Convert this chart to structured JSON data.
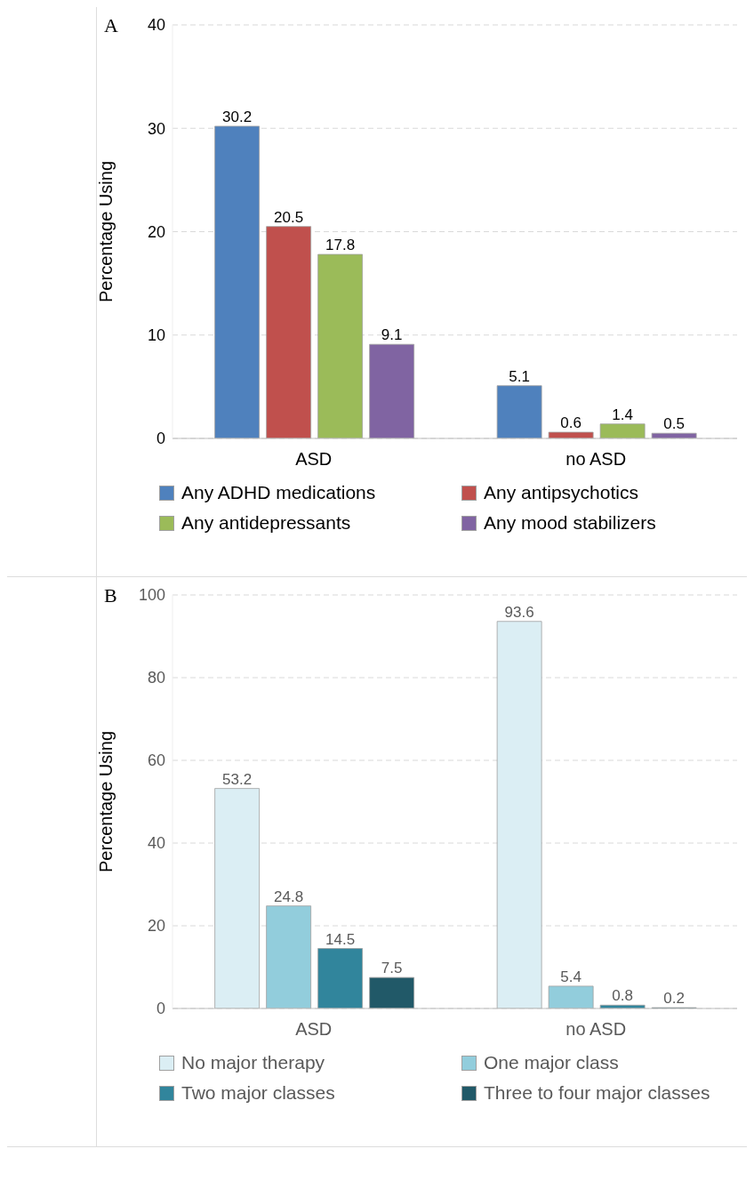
{
  "chart_data": [
    {
      "type": "bar",
      "title": "A",
      "ylabel": "Percentage Using",
      "categories": [
        "ASD",
        "no ASD"
      ],
      "ylim": [
        0,
        40
      ],
      "yticks": [
        0,
        10,
        20,
        30,
        40
      ],
      "grid": "y",
      "legend": "bottom",
      "data_labels": true,
      "series": [
        {
          "name": "Any ADHD medications",
          "color": "#4f81bd",
          "values": [
            30.2,
            5.1
          ]
        },
        {
          "name": "Any antipsychotics",
          "color": "#c0504d",
          "values": [
            20.5,
            0.6
          ]
        },
        {
          "name": "Any antidepressants",
          "color": "#9bbb59",
          "values": [
            17.8,
            1.4
          ]
        },
        {
          "name": "Any mood stabilizers",
          "color": "#8064a2",
          "values": [
            9.1,
            0.5
          ]
        }
      ]
    },
    {
      "type": "bar",
      "title": "B",
      "ylabel": "Percentage Using",
      "categories": [
        "ASD",
        "no ASD"
      ],
      "ylim": [
        0,
        100
      ],
      "yticks": [
        0,
        20,
        40,
        60,
        80,
        100
      ],
      "grid": "y",
      "legend": "bottom",
      "data_labels": true,
      "series": [
        {
          "name": "No major therapy",
          "color": "#dbeef4",
          "values": [
            53.2,
            93.6
          ]
        },
        {
          "name": "One major class",
          "color": "#92cddc",
          "values": [
            24.8,
            5.4
          ]
        },
        {
          "name": "Two major classes",
          "color": "#31859c",
          "values": [
            14.5,
            0.8
          ]
        },
        {
          "name": "Three to four major classes",
          "color": "#215968",
          "values": [
            7.5,
            0.2
          ]
        }
      ]
    }
  ]
}
